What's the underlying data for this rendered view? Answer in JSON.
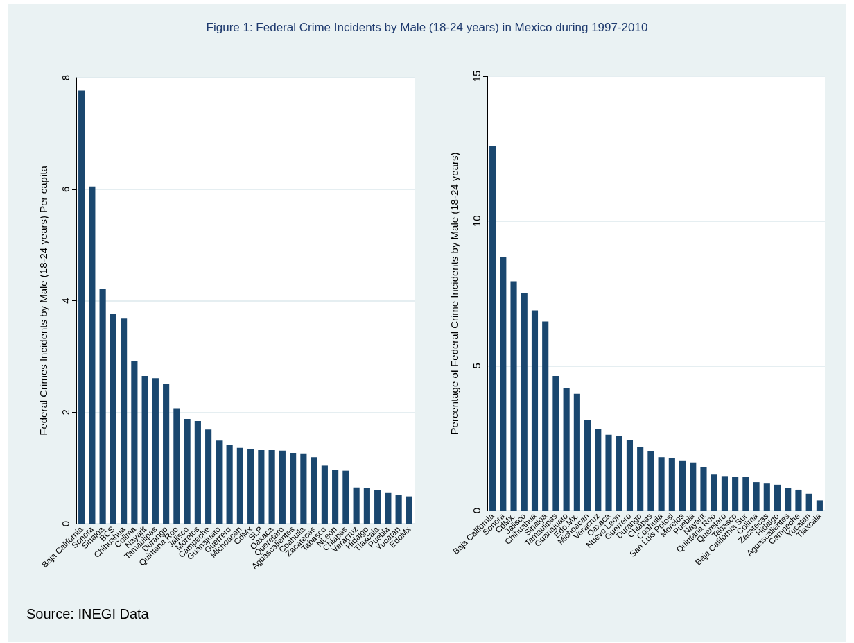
{
  "chart_data": [
    {
      "type": "bar",
      "title": "Figure 1: Federal Crime Incidents by Male (18-24 years) in Mexico during 1997-2010",
      "ylabel": "Federal Crimes Incidents by Male (18-24 years) Per capita",
      "categories": [
        "Baja California",
        "Sonora",
        "Sinaloa",
        "BCS",
        "Chihuahua",
        "Colima",
        "Nayarit",
        "Tamaulipas",
        "Durango",
        "Quintana Roo",
        "Jalisco",
        "Morelos",
        "Campeche",
        "Guanajuato",
        "Guerrero",
        "Michoacan",
        "CdMx",
        "SLP",
        "Oaxaca",
        "Queretaro",
        "Aguascalientes",
        "Coahuila",
        "Zacatecas",
        "Tabasco",
        "NLeon",
        "Chiapas",
        "Veracruz",
        "Hidalgo",
        "Tlaxcala",
        "Puebla",
        "Yucatan",
        "EdoMx"
      ],
      "values": [
        7.77,
        6.05,
        4.21,
        3.77,
        3.68,
        2.92,
        2.65,
        2.61,
        2.51,
        2.07,
        1.88,
        1.84,
        1.69,
        1.49,
        1.41,
        1.36,
        1.33,
        1.32,
        1.32,
        1.31,
        1.27,
        1.26,
        1.19,
        1.04,
        0.97,
        0.95,
        0.65,
        0.64,
        0.61,
        0.55,
        0.51,
        0.49
      ],
      "color": "#1a476f",
      "ylim": [
        0,
        8
      ],
      "yticks": [
        0,
        2,
        4,
        6,
        8
      ],
      "grid": "y",
      "annotations": [
        "Source: INEGI Data"
      ]
    },
    {
      "type": "bar",
      "ylabel": "Percentage of Federal Crime Incidents by Male (18-24 years)",
      "categories": [
        "Baja California",
        "Sonora",
        "CdMx.",
        "Jalisco",
        "Chihuahua",
        "Sinaloa",
        "Tamaulipas",
        "Guanajuato",
        "Edo.Mx.",
        "Michoacan",
        "Veracruz",
        "Oaxaca",
        "Nuevo Leon",
        "Guerrero",
        "Durango",
        "Chiapas",
        "Coahuila",
        "San Luis Potosi",
        "Morelos",
        "Puebla",
        "Nayarit",
        "Quintana Roo",
        "Queretaro",
        "Tabasco",
        "Baja California Sur",
        "Colima",
        "Zacatecas",
        "Hidalgo",
        "Aguascalientes",
        "Campeche",
        "Yucatan",
        "Tlaxcala"
      ],
      "values": [
        12.6,
        8.76,
        7.92,
        7.51,
        6.91,
        6.53,
        4.65,
        4.23,
        4.03,
        3.12,
        2.81,
        2.62,
        2.59,
        2.43,
        2.18,
        2.06,
        1.84,
        1.8,
        1.73,
        1.66,
        1.51,
        1.24,
        1.19,
        1.17,
        1.17,
        0.98,
        0.93,
        0.89,
        0.77,
        0.72,
        0.58,
        0.35
      ],
      "color": "#1a476f",
      "ylim": [
        0,
        15
      ],
      "yticks": [
        0,
        5,
        10,
        15
      ],
      "grid": "y"
    }
  ]
}
